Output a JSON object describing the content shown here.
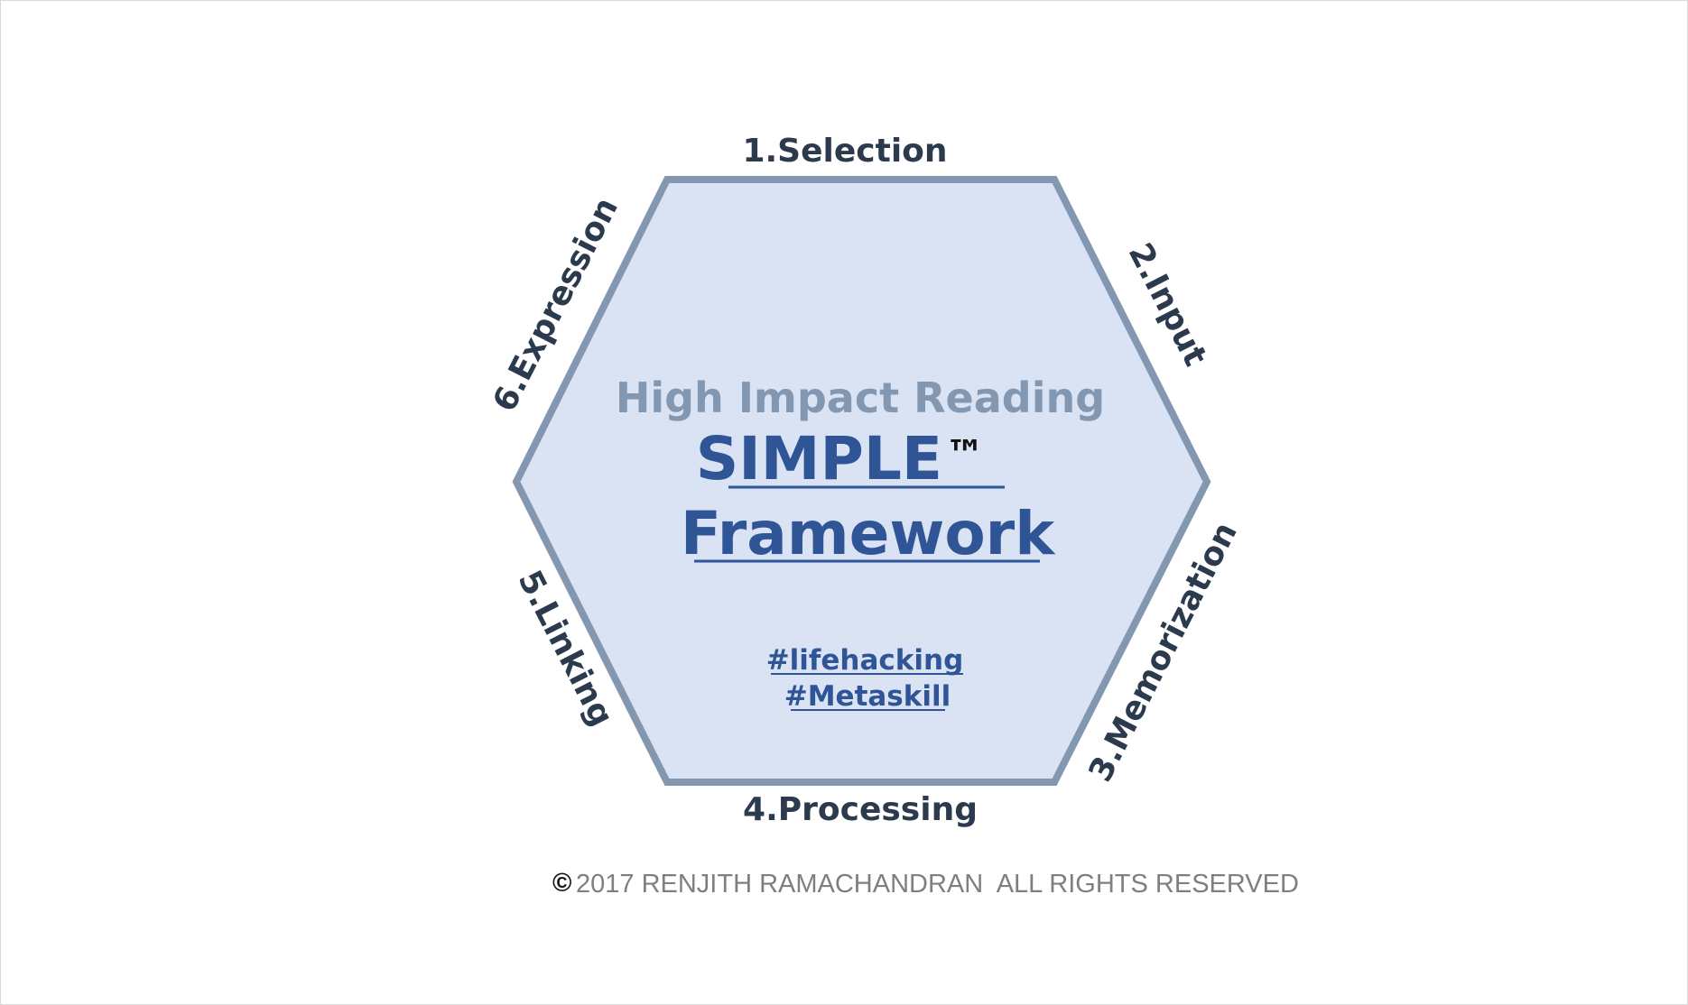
{
  "diagram": {
    "subtitle": "High Impact Reading",
    "title_line1": "SIMPLE",
    "trademark": "™",
    "title_line2": "Framework",
    "hashtags": [
      "#lifehacking",
      "#Metaskill"
    ],
    "steps": [
      {
        "label": "1.Selection"
      },
      {
        "label": "2.Input"
      },
      {
        "label": "3.Memorization"
      },
      {
        "label": "4.Processing"
      },
      {
        "label": "5.Linking"
      },
      {
        "label": "6.Expression"
      }
    ],
    "colors": {
      "hexagon_fill": "#dae3f3",
      "hexagon_stroke": "#8497b0",
      "title": "#2f5597",
      "subtitle": "#8497b0",
      "labels": "#2c3a4e"
    }
  },
  "footer": {
    "copyright_mark": "©",
    "copyright_text": "2017 RENJITH RAMACHANDRAN  ALL RIGHTS RESERVED"
  }
}
